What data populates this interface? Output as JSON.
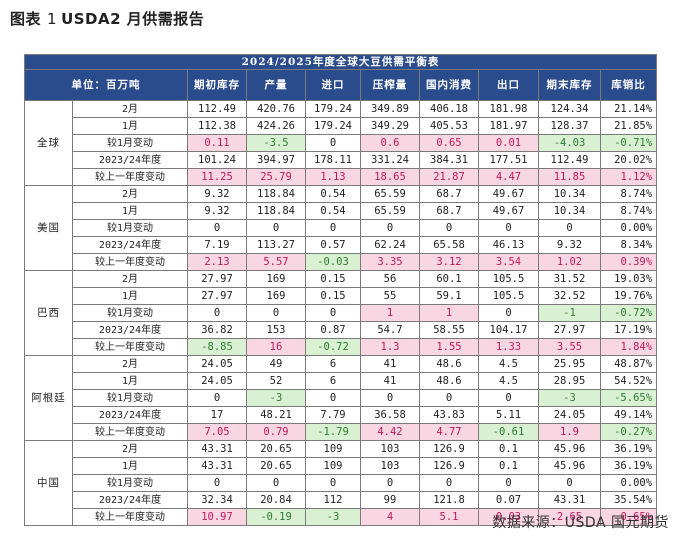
{
  "figure": {
    "prefix": "图表",
    "number": "1",
    "title": "USDA2 月供需报告"
  },
  "table": {
    "title": "2024/2025年度全球大豆供需平衡表",
    "headers": [
      "单位：百万吨",
      "期初库存",
      "产量",
      "进口",
      "压榨量",
      "国内消费",
      "出口",
      "期末库存",
      "库销比"
    ],
    "regions": [
      {
        "name": "全球",
        "rows": [
          {
            "label": "2月",
            "values": [
              "112.49",
              "420.76",
              "179.24",
              "349.89",
              "406.18",
              "181.98",
              "124.34",
              "21.14%"
            ],
            "styles": [
              "",
              "",
              "",
              "",
              "",
              "",
              "",
              ""
            ]
          },
          {
            "label": "1月",
            "values": [
              "112.38",
              "424.26",
              "179.24",
              "349.29",
              "405.53",
              "181.97",
              "128.37",
              "21.85%"
            ],
            "styles": [
              "",
              "",
              "",
              "",
              "",
              "",
              "",
              ""
            ]
          },
          {
            "label": "较1月变动",
            "values": [
              "0.11",
              "-3.5",
              "0",
              "0.6",
              "0.65",
              "0.01",
              "-4.03",
              "-0.71%"
            ],
            "styles": [
              "neg",
              "pos",
              "",
              "neg",
              "neg",
              "neg",
              "pos",
              "pos"
            ]
          },
          {
            "label": "2023/24年度",
            "values": [
              "101.24",
              "394.97",
              "178.11",
              "331.24",
              "384.31",
              "177.51",
              "112.49",
              "20.02%"
            ],
            "styles": [
              "",
              "",
              "",
              "",
              "",
              "",
              "",
              ""
            ]
          },
          {
            "label": "较上一年度变动",
            "values": [
              "11.25",
              "25.79",
              "1.13",
              "18.65",
              "21.87",
              "4.47",
              "11.85",
              "1.12%"
            ],
            "styles": [
              "neg",
              "neg",
              "neg",
              "neg",
              "neg",
              "neg",
              "neg",
              "neg"
            ]
          }
        ]
      },
      {
        "name": "美国",
        "rows": [
          {
            "label": "2月",
            "values": [
              "9.32",
              "118.84",
              "0.54",
              "65.59",
              "68.7",
              "49.67",
              "10.34",
              "8.74%"
            ],
            "styles": [
              "",
              "",
              "",
              "",
              "",
              "",
              "",
              ""
            ]
          },
          {
            "label": "1月",
            "values": [
              "9.32",
              "118.84",
              "0.54",
              "65.59",
              "68.7",
              "49.67",
              "10.34",
              "8.74%"
            ],
            "styles": [
              "",
              "",
              "",
              "",
              "",
              "",
              "",
              ""
            ]
          },
          {
            "label": "较1月变动",
            "values": [
              "0",
              "0",
              "0",
              "0",
              "0",
              "0",
              "0",
              "0.00%"
            ],
            "styles": [
              "",
              "",
              "",
              "",
              "",
              "",
              "",
              ""
            ]
          },
          {
            "label": "2023/24年度",
            "values": [
              "7.19",
              "113.27",
              "0.57",
              "62.24",
              "65.58",
              "46.13",
              "9.32",
              "8.34%"
            ],
            "styles": [
              "",
              "",
              "",
              "",
              "",
              "",
              "",
              ""
            ]
          },
          {
            "label": "较上一年度变动",
            "values": [
              "2.13",
              "5.57",
              "-0.03",
              "3.35",
              "3.12",
              "3.54",
              "1.02",
              "0.39%"
            ],
            "styles": [
              "neg",
              "neg",
              "pos",
              "neg",
              "neg",
              "neg",
              "neg",
              "neg"
            ]
          }
        ]
      },
      {
        "name": "巴西",
        "rows": [
          {
            "label": "2月",
            "values": [
              "27.97",
              "169",
              "0.15",
              "56",
              "60.1",
              "105.5",
              "31.52",
              "19.03%"
            ],
            "styles": [
              "",
              "",
              "",
              "",
              "",
              "",
              "",
              ""
            ]
          },
          {
            "label": "1月",
            "values": [
              "27.97",
              "169",
              "0.15",
              "55",
              "59.1",
              "105.5",
              "32.52",
              "19.76%"
            ],
            "styles": [
              "",
              "",
              "",
              "",
              "",
              "",
              "",
              ""
            ]
          },
          {
            "label": "较1月变动",
            "values": [
              "0",
              "0",
              "0",
              "1",
              "1",
              "0",
              "-1",
              "-0.72%"
            ],
            "styles": [
              "",
              "",
              "",
              "neg",
              "neg",
              "",
              "pos",
              "pos"
            ]
          },
          {
            "label": "2023/24年度",
            "values": [
              "36.82",
              "153",
              "0.87",
              "54.7",
              "58.55",
              "104.17",
              "27.97",
              "17.19%"
            ],
            "styles": [
              "",
              "",
              "",
              "",
              "",
              "",
              "",
              ""
            ]
          },
          {
            "label": "较上一年度变动",
            "values": [
              "-8.85",
              "16",
              "-0.72",
              "1.3",
              "1.55",
              "1.33",
              "3.55",
              "1.84%"
            ],
            "styles": [
              "pos",
              "neg",
              "pos",
              "neg",
              "neg",
              "neg",
              "neg",
              "neg"
            ]
          }
        ]
      },
      {
        "name": "阿根廷",
        "rows": [
          {
            "label": "2月",
            "values": [
              "24.05",
              "49",
              "6",
              "41",
              "48.6",
              "4.5",
              "25.95",
              "48.87%"
            ],
            "styles": [
              "",
              "",
              "",
              "",
              "",
              "",
              "",
              ""
            ]
          },
          {
            "label": "1月",
            "values": [
              "24.05",
              "52",
              "6",
              "41",
              "48.6",
              "4.5",
              "28.95",
              "54.52%"
            ],
            "styles": [
              "",
              "",
              "",
              "",
              "",
              "",
              "",
              ""
            ]
          },
          {
            "label": "较1月变动",
            "values": [
              "0",
              "-3",
              "0",
              "0",
              "0",
              "0",
              "-3",
              "-5.65%"
            ],
            "styles": [
              "",
              "pos",
              "",
              "",
              "",
              "",
              "pos",
              "pos"
            ]
          },
          {
            "label": "2023/24年度",
            "values": [
              "17",
              "48.21",
              "7.79",
              "36.58",
              "43.83",
              "5.11",
              "24.05",
              "49.14%"
            ],
            "styles": [
              "",
              "",
              "",
              "",
              "",
              "",
              "",
              ""
            ]
          },
          {
            "label": "较上一年度变动",
            "values": [
              "7.05",
              "0.79",
              "-1.79",
              "4.42",
              "4.77",
              "-0.61",
              "1.9",
              "-0.27%"
            ],
            "styles": [
              "neg",
              "neg",
              "pos",
              "neg",
              "neg",
              "pos",
              "neg",
              "pos"
            ]
          }
        ]
      },
      {
        "name": "中国",
        "rows": [
          {
            "label": "2月",
            "values": [
              "43.31",
              "20.65",
              "109",
              "103",
              "126.9",
              "0.1",
              "45.96",
              "36.19%"
            ],
            "styles": [
              "",
              "",
              "",
              "",
              "",
              "",
              "",
              ""
            ]
          },
          {
            "label": "1月",
            "values": [
              "43.31",
              "20.65",
              "109",
              "103",
              "126.9",
              "0.1",
              "45.96",
              "36.19%"
            ],
            "styles": [
              "",
              "",
              "",
              "",
              "",
              "",
              "",
              ""
            ]
          },
          {
            "label": "较1月变动",
            "values": [
              "0",
              "0",
              "0",
              "0",
              "0",
              "0",
              "0",
              "0.00%"
            ],
            "styles": [
              "",
              "",
              "",
              "",
              "",
              "",
              "",
              ""
            ]
          },
          {
            "label": "2023/24年度",
            "values": [
              "32.34",
              "20.84",
              "112",
              "99",
              "121.8",
              "0.07",
              "43.31",
              "35.54%"
            ],
            "styles": [
              "",
              "",
              "",
              "",
              "",
              "",
              "",
              ""
            ]
          },
          {
            "label": "较上一年度变动",
            "values": [
              "10.97",
              "-0.19",
              "-3",
              "4",
              "5.1",
              "0.03",
              "2.65",
              "0.65%"
            ],
            "styles": [
              "neg",
              "pos",
              "pos",
              "neg",
              "neg",
              "neg",
              "neg",
              "neg"
            ]
          }
        ]
      }
    ]
  },
  "source": "数据来源：USDA 国元期货",
  "colors": {
    "header_bg": "#2b4c8c",
    "increase_bg": "#f8d7e3",
    "increase_text": "#c2185b",
    "decrease_bg": "#d9f0d3",
    "decrease_text": "#2e7d32"
  }
}
